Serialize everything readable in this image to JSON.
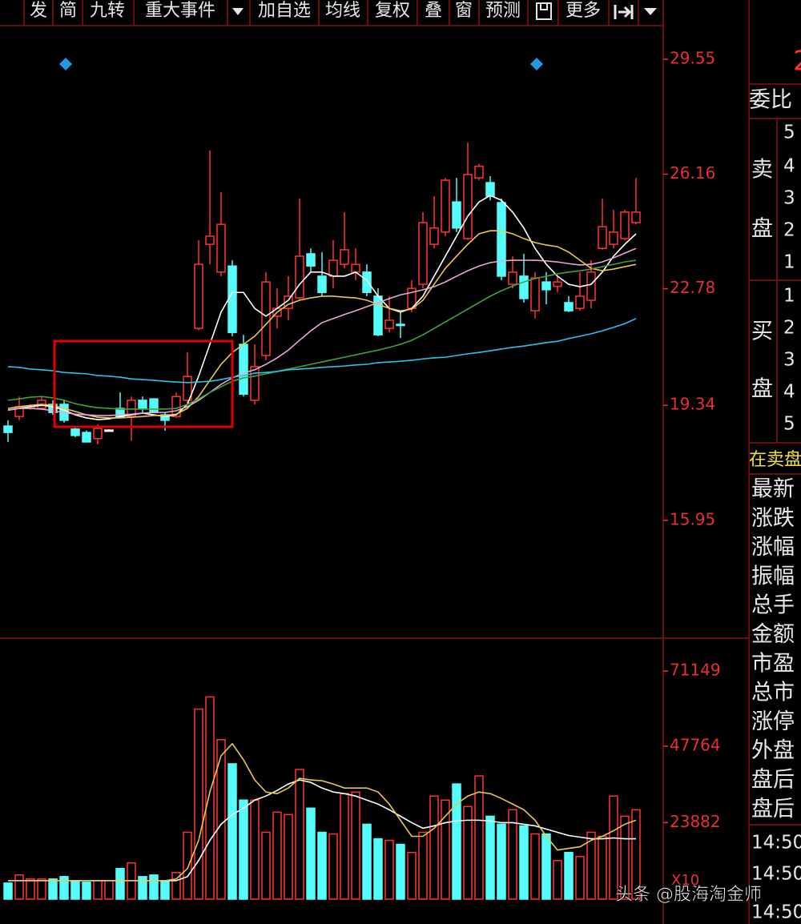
{
  "toolbar": {
    "items": [
      "发",
      "简",
      "九转",
      "重大事件",
      "加自选",
      "均线",
      "复权",
      "叠",
      "窗",
      "预测",
      "更多"
    ]
  },
  "chart_data": [
    {
      "type": "candlestick",
      "open": [
        18.73,
        19.01,
        19.25,
        19.25,
        19.37,
        19.37,
        18.64,
        18.54,
        18.36,
        18.61,
        19.25,
        19.01,
        19.49,
        19.53,
        19.06,
        19.01,
        19.49,
        21.61,
        24.09,
        23.27,
        23.45,
        21.14,
        19.49,
        20.81,
        21.97,
        22.2,
        22.51,
        23.81,
        23.15,
        23.15,
        23.5,
        23.27,
        23.27,
        22.56,
        21.61,
        21.73,
        22.2,
        22.91,
        24.09,
        24.45,
        25.34,
        24.26,
        26.05,
        25.91,
        25.32,
        22.91,
        23.15,
        22.13,
        22.98,
        22.85,
        22.37,
        22.2,
        22.44,
        23.97,
        24.09,
        24.26,
        24.73
      ],
      "high": [
        18.9,
        19.6,
        19.37,
        19.6,
        19.49,
        19.49,
        18.7,
        18.6,
        18.78,
        18.64,
        19.72,
        19.6,
        19.6,
        19.55,
        19.13,
        19.72,
        20.9,
        24.21,
        26.86,
        25.63,
        23.62,
        21.42,
        21.14,
        23.27,
        22.79,
        23.15,
        25.44,
        23.97,
        23.86,
        24.21,
        25.04,
        23.97,
        23.5,
        22.79,
        22.56,
        22.09,
        23.03,
        25.04,
        25.51,
        26.05,
        26.05,
        27.09,
        26.46,
        26.1,
        25.44,
        23.74,
        23.81,
        23.27,
        23.27,
        23.15,
        22.56,
        23.27,
        23.62,
        25.44,
        25.11,
        25.11,
        26.05
      ],
      "low": [
        18.26,
        18.9,
        19.21,
        19.21,
        19.06,
        18.83,
        18.4,
        18.26,
        18.19,
        18.59,
        18.97,
        18.29,
        19.13,
        19.13,
        18.59,
        18.97,
        19.37,
        21.56,
        23.5,
        23.15,
        21.38,
        19.6,
        19.37,
        20.67,
        21.61,
        21.85,
        22.44,
        23.27,
        22.56,
        22.79,
        23.38,
        23.03,
        22.56,
        21.38,
        21.49,
        21.33,
        22.09,
        22.79,
        23.97,
        24.33,
        24.45,
        24.21,
        25.98,
        25.39,
        23.03,
        22.79,
        22.37,
        21.9,
        22.32,
        22.67,
        22.09,
        22.13,
        22.2,
        23.93,
        23.97,
        24.21,
        24.68
      ],
      "close": [
        18.54,
        19.3,
        19.3,
        19.49,
        19.13,
        18.9,
        18.45,
        18.26,
        18.66,
        18.61,
        19.01,
        19.49,
        19.25,
        19.13,
        18.9,
        19.6,
        20.19,
        23.5,
        24.33,
        24.68,
        21.49,
        19.67,
        20.48,
        22.98,
        22.2,
        22.56,
        23.74,
        23.45,
        22.67,
        23.62,
        23.93,
        23.5,
        22.67,
        21.42,
        21.85,
        21.7,
        22.79,
        24.73,
        24.57,
        25.98,
        24.57,
        26.15,
        26.39,
        25.51,
        23.15,
        23.27,
        22.49,
        23.1,
        22.75,
        22.98,
        22.13,
        22.56,
        23.27,
        24.61,
        24.45,
        25.04,
        25.04
      ],
      "up_color": "#ff3232",
      "down_color": "#54fcfc",
      "flat_color": "#ffffff",
      "series": [
        {
          "color": "#ffffff",
          "values": [
            19.2,
            19.25,
            19.3,
            19.34,
            19.3,
            19.2,
            19.06,
            18.97,
            18.92,
            18.94,
            19.01,
            19.06,
            19.11,
            19.06,
            19.01,
            19.06,
            19.37,
            20.2,
            21.14,
            22.09,
            22.67,
            22.67,
            22.2,
            21.97,
            22.2,
            22.44,
            22.91,
            23.27,
            23.27,
            23.15,
            23.15,
            23.27,
            23.03,
            22.56,
            22.2,
            22.09,
            22.2,
            22.56,
            23.15,
            23.74,
            24.33,
            24.92,
            25.34,
            25.53,
            25.39,
            25.04,
            24.57,
            23.97,
            23.5,
            23.15,
            22.91,
            22.84,
            22.91,
            23.27,
            23.74,
            24.09,
            24.4
          ]
        },
        {
          "color": "#e8c84a",
          "values": [
            19.25,
            19.3,
            19.34,
            19.37,
            19.34,
            19.25,
            19.16,
            19.06,
            18.99,
            18.97,
            18.97,
            18.99,
            19.01,
            19.04,
            19.04,
            19.08,
            19.25,
            19.6,
            20.08,
            20.55,
            20.9,
            21.14,
            21.38,
            21.73,
            22.09,
            22.32,
            22.44,
            22.51,
            22.56,
            22.56,
            22.53,
            22.51,
            22.44,
            22.32,
            22.2,
            22.13,
            22.18,
            22.44,
            22.91,
            23.38,
            23.74,
            24.09,
            24.4,
            24.49,
            24.49,
            24.4,
            24.26,
            24.14,
            24.07,
            24.02,
            23.86,
            23.62,
            23.38,
            23.31,
            23.36,
            23.43,
            23.5
          ]
        },
        {
          "color": "#e6a8d8",
          "values": [
            19.2,
            19.25,
            19.25,
            19.23,
            19.18,
            19.13,
            19.08,
            19.06,
            19.04,
            19.04,
            19.06,
            19.08,
            19.11,
            19.13,
            19.13,
            19.18,
            19.3,
            19.49,
            19.72,
            19.96,
            20.15,
            20.29,
            20.39,
            20.55,
            20.74,
            20.97,
            21.26,
            21.54,
            21.78,
            21.9,
            22.02,
            22.13,
            22.25,
            22.37,
            22.49,
            22.6,
            22.67,
            22.75,
            22.84,
            22.98,
            23.15,
            23.31,
            23.45,
            23.55,
            23.6,
            23.62,
            23.62,
            23.62,
            23.6,
            23.57,
            23.52,
            23.48,
            23.5,
            23.57,
            23.69,
            23.83,
            23.97
          ]
        },
        {
          "color": "#3fa23f",
          "values": [
            19.49,
            19.53,
            19.58,
            19.6,
            19.56,
            19.49,
            19.39,
            19.32,
            19.27,
            19.25,
            19.23,
            19.23,
            19.23,
            19.23,
            19.23,
            19.25,
            19.37,
            19.53,
            19.72,
            19.89,
            20.05,
            20.15,
            20.2,
            20.27,
            20.34,
            20.41,
            20.48,
            20.55,
            20.62,
            20.69,
            20.76,
            20.83,
            20.9,
            20.97,
            21.05,
            21.14,
            21.26,
            21.42,
            21.61,
            21.8,
            21.99,
            22.18,
            22.37,
            22.56,
            22.72,
            22.86,
            22.98,
            23.08,
            23.15,
            23.22,
            23.27,
            23.31,
            23.36,
            23.43,
            23.5,
            23.57,
            23.62
          ]
        },
        {
          "color": "#2fc2e8",
          "values": [
            20.48,
            20.46,
            20.41,
            20.39,
            20.36,
            20.31,
            20.29,
            20.27,
            20.22,
            20.2,
            20.17,
            20.12,
            20.1,
            20.08,
            20.05,
            20.03,
            20.01,
            20.03,
            20.05,
            20.1,
            20.17,
            20.22,
            20.29,
            20.31,
            20.34,
            20.39,
            20.41,
            20.43,
            20.46,
            20.48,
            20.5,
            20.53,
            20.55,
            20.6,
            20.62,
            20.64,
            20.67,
            20.71,
            20.74,
            20.76,
            20.81,
            20.86,
            20.9,
            20.95,
            21.0,
            21.05,
            21.09,
            21.14,
            21.19,
            21.23,
            21.31,
            21.38,
            21.45,
            21.54,
            21.64,
            21.75,
            21.9
          ]
        }
      ],
      "ylim": [
        12.52,
        30.47
      ],
      "yticks": [
        15.95,
        19.34,
        22.78,
        26.16,
        29.55
      ],
      "axis_color": "#e83030"
    },
    {
      "type": "bar",
      "values": [
        5030,
        7540,
        6290,
        6290,
        6290,
        7040,
        5780,
        5280,
        5780,
        5780,
        9550,
        11310,
        7040,
        7540,
        5530,
        8300,
        20870,
        59330,
        63100,
        49780,
        42240,
        30920,
        30920,
        20870,
        27150,
        26400,
        40480,
        28410,
        20870,
        20360,
        32930,
        33440,
        23380,
        18860,
        18350,
        17100,
        14580,
        20870,
        32180,
        30920,
        35950,
        28910,
        38460,
        25890,
        23380,
        27910,
        22880,
        20360,
        20360,
        12070,
        14580,
        13320,
        20870,
        19610,
        32180,
        25890,
        27910
      ],
      "series": [
        {
          "color": "#ffffff",
          "values": [
            5780,
            5780,
            5780,
            5780,
            5780,
            5780,
            5780,
            5780,
            5780,
            5780,
            5780,
            5780,
            5780,
            5780,
            5780,
            5780,
            7040,
            12070,
            18350,
            23380,
            26400,
            28410,
            30920,
            32180,
            33940,
            35950,
            37210,
            36450,
            34690,
            33440,
            32930,
            32180,
            30920,
            29670,
            27910,
            25890,
            23880,
            22120,
            22880,
            23880,
            24390,
            24640,
            24640,
            24390,
            23880,
            23880,
            23380,
            22880,
            21870,
            20870,
            19860,
            19360,
            18860,
            18860,
            19110,
            18860,
            18860
          ]
        },
        {
          "color": "#e8c84a",
          "values": [
            5780,
            5780,
            5780,
            5780,
            5780,
            5780,
            5780,
            5780,
            5780,
            5780,
            5780,
            5780,
            5780,
            5780,
            5780,
            6290,
            9550,
            18350,
            33440,
            44750,
            48520,
            43490,
            37210,
            33440,
            32930,
            34690,
            37710,
            37210,
            36960,
            35950,
            34690,
            34690,
            34690,
            33440,
            29670,
            24640,
            19610,
            19610,
            22120,
            25890,
            29670,
            32180,
            33440,
            32930,
            31430,
            29670,
            27910,
            24640,
            19610,
            15340,
            15840,
            16340,
            18350,
            19610,
            21370,
            23380,
            24640
          ]
        }
      ],
      "unit_label": "X10",
      "ylim": [
        0,
        80700
      ],
      "yticks": [
        23882,
        47764,
        71149
      ],
      "axis_color": "#e83030"
    }
  ],
  "side_panel": {
    "price": "2",
    "ratio_label": "委比",
    "sell_label": [
      "卖",
      "盘"
    ],
    "sell_levels": [
      5,
      4,
      3,
      2,
      1
    ],
    "buy_label": [
      "买",
      "盘"
    ],
    "buy_levels": [
      1,
      2,
      3,
      4,
      5
    ],
    "status": "在卖盘",
    "fields": [
      "最新",
      "涨跌",
      "涨幅",
      "振幅",
      "总手",
      "金额",
      "市盈",
      "总市",
      "涨停",
      "外盘",
      "盘后",
      "盘后"
    ],
    "times": [
      "14:50",
      "14:50",
      "14:50"
    ]
  },
  "watermark": "头条 @股海淘金师"
}
